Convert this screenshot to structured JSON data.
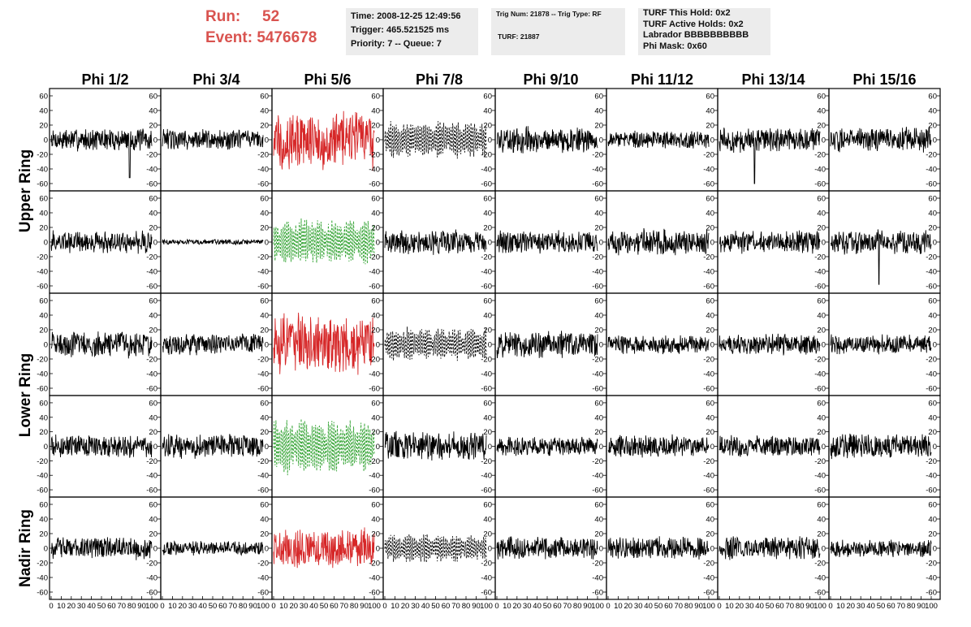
{
  "header": {
    "run_label": "Run:",
    "run_value": "52",
    "event_label": "Event:",
    "event_value": "5476678"
  },
  "info_time": {
    "time": "Time: 2008-12-25 12:49:56",
    "trigger": "Trigger: 465.521525 ms",
    "priority": "Priority: 7 -- Queue: 7"
  },
  "info_trig": {
    "line1": "Trig Num: 21878 -- Trig Type: RF",
    "line2": "TURF: 21887"
  },
  "info_turf": {
    "this_hold": "TURF This Hold: 0x2",
    "active_holds": "TURF Active Holds: 0x2",
    "labrador": "Labrador BBBBBBBBBB",
    "phi_mask": "Phi Mask: 0x60"
  },
  "colors": {
    "header_red": "#d9534f",
    "trace_black": "#000000",
    "trace_red": "#d62728",
    "trace_green": "#2ca02c"
  },
  "chart_data": {
    "type": "line",
    "columns": [
      "Phi 1/2",
      "Phi 3/4",
      "Phi 5/6",
      "Phi 7/8",
      "Phi 9/10",
      "Phi 11/12",
      "Phi 13/14",
      "Phi 15/16"
    ],
    "ring_labels": [
      {
        "text": "Upper Ring",
        "rows": [
          0,
          1
        ]
      },
      {
        "text": "Lower Ring",
        "rows": [
          2,
          3
        ]
      },
      {
        "text": "Nadir Ring",
        "rows": [
          4
        ]
      }
    ],
    "xlim": [
      0,
      100
    ],
    "ylim": [
      -70,
      70
    ],
    "x_ticks": [
      "0",
      "10",
      "20",
      "30",
      "40",
      "50",
      "60",
      "70",
      "80",
      "90",
      "100"
    ],
    "y_ticks": [
      "60",
      "40",
      "20",
      "0",
      "-20",
      "-40",
      "-60"
    ],
    "grid": false,
    "panels": [
      {
        "row": 0,
        "col": 0,
        "style": "solid",
        "color": "black",
        "amp": 13,
        "spike": [
          78,
          -52
        ]
      },
      {
        "row": 0,
        "col": 1,
        "style": "solid",
        "color": "black",
        "amp": 12
      },
      {
        "row": 0,
        "col": 2,
        "style": "solid",
        "color": "red",
        "amp": 34
      },
      {
        "row": 0,
        "col": 3,
        "style": "dashed",
        "color": "black",
        "amp": 22
      },
      {
        "row": 0,
        "col": 4,
        "style": "solid",
        "color": "black",
        "amp": 15
      },
      {
        "row": 0,
        "col": 5,
        "style": "solid",
        "color": "black",
        "amp": 10
      },
      {
        "row": 0,
        "col": 6,
        "style": "solid",
        "color": "black",
        "amp": 14,
        "spike": [
          35,
          -60
        ]
      },
      {
        "row": 0,
        "col": 7,
        "style": "solid",
        "color": "black",
        "amp": 14
      },
      {
        "row": 1,
        "col": 0,
        "style": "solid",
        "color": "black",
        "amp": 13
      },
      {
        "row": 1,
        "col": 1,
        "style": "solid",
        "color": "black",
        "amp": 3
      },
      {
        "row": 1,
        "col": 2,
        "style": "dashed",
        "color": "green",
        "amp": 28
      },
      {
        "row": 1,
        "col": 3,
        "style": "solid",
        "color": "black",
        "amp": 14
      },
      {
        "row": 1,
        "col": 4,
        "style": "solid",
        "color": "black",
        "amp": 13
      },
      {
        "row": 1,
        "col": 5,
        "style": "solid",
        "color": "black",
        "amp": 15
      },
      {
        "row": 1,
        "col": 6,
        "style": "solid",
        "color": "black",
        "amp": 13
      },
      {
        "row": 1,
        "col": 7,
        "style": "solid",
        "color": "black",
        "amp": 14,
        "spike": [
          48,
          -58
        ]
      },
      {
        "row": 2,
        "col": 0,
        "style": "solid",
        "color": "black",
        "amp": 15
      },
      {
        "row": 2,
        "col": 1,
        "style": "solid",
        "color": "black",
        "amp": 12
      },
      {
        "row": 2,
        "col": 2,
        "style": "solid",
        "color": "red",
        "amp": 34
      },
      {
        "row": 2,
        "col": 3,
        "style": "dashed",
        "color": "black",
        "amp": 20
      },
      {
        "row": 2,
        "col": 4,
        "style": "solid",
        "color": "black",
        "amp": 16
      },
      {
        "row": 2,
        "col": 5,
        "style": "solid",
        "color": "black",
        "amp": 11
      },
      {
        "row": 2,
        "col": 6,
        "style": "solid",
        "color": "black",
        "amp": 12
      },
      {
        "row": 2,
        "col": 7,
        "style": "solid",
        "color": "black",
        "amp": 11
      },
      {
        "row": 3,
        "col": 0,
        "style": "solid",
        "color": "black",
        "amp": 13
      },
      {
        "row": 3,
        "col": 1,
        "style": "solid",
        "color": "black",
        "amp": 14
      },
      {
        "row": 3,
        "col": 2,
        "style": "dashed",
        "color": "green",
        "amp": 34
      },
      {
        "row": 3,
        "col": 3,
        "style": "solid",
        "color": "black",
        "amp": 17
      },
      {
        "row": 3,
        "col": 4,
        "style": "solid",
        "color": "black",
        "amp": 11
      },
      {
        "row": 3,
        "col": 5,
        "style": "solid",
        "color": "black",
        "amp": 13
      },
      {
        "row": 3,
        "col": 6,
        "style": "solid",
        "color": "black",
        "amp": 13
      },
      {
        "row": 3,
        "col": 7,
        "style": "solid",
        "color": "black",
        "amp": 14
      },
      {
        "row": 4,
        "col": 0,
        "style": "solid",
        "color": "black",
        "amp": 13
      },
      {
        "row": 4,
        "col": 1,
        "style": "solid",
        "color": "black",
        "amp": 8
      },
      {
        "row": 4,
        "col": 2,
        "style": "solid",
        "color": "red",
        "amp": 22
      },
      {
        "row": 4,
        "col": 3,
        "style": "dashed",
        "color": "black",
        "amp": 17
      },
      {
        "row": 4,
        "col": 4,
        "style": "solid",
        "color": "black",
        "amp": 13
      },
      {
        "row": 4,
        "col": 5,
        "style": "solid",
        "color": "black",
        "amp": 13
      },
      {
        "row": 4,
        "col": 6,
        "style": "solid",
        "color": "black",
        "amp": 13
      },
      {
        "row": 4,
        "col": 7,
        "style": "solid",
        "color": "black",
        "amp": 10
      }
    ]
  }
}
